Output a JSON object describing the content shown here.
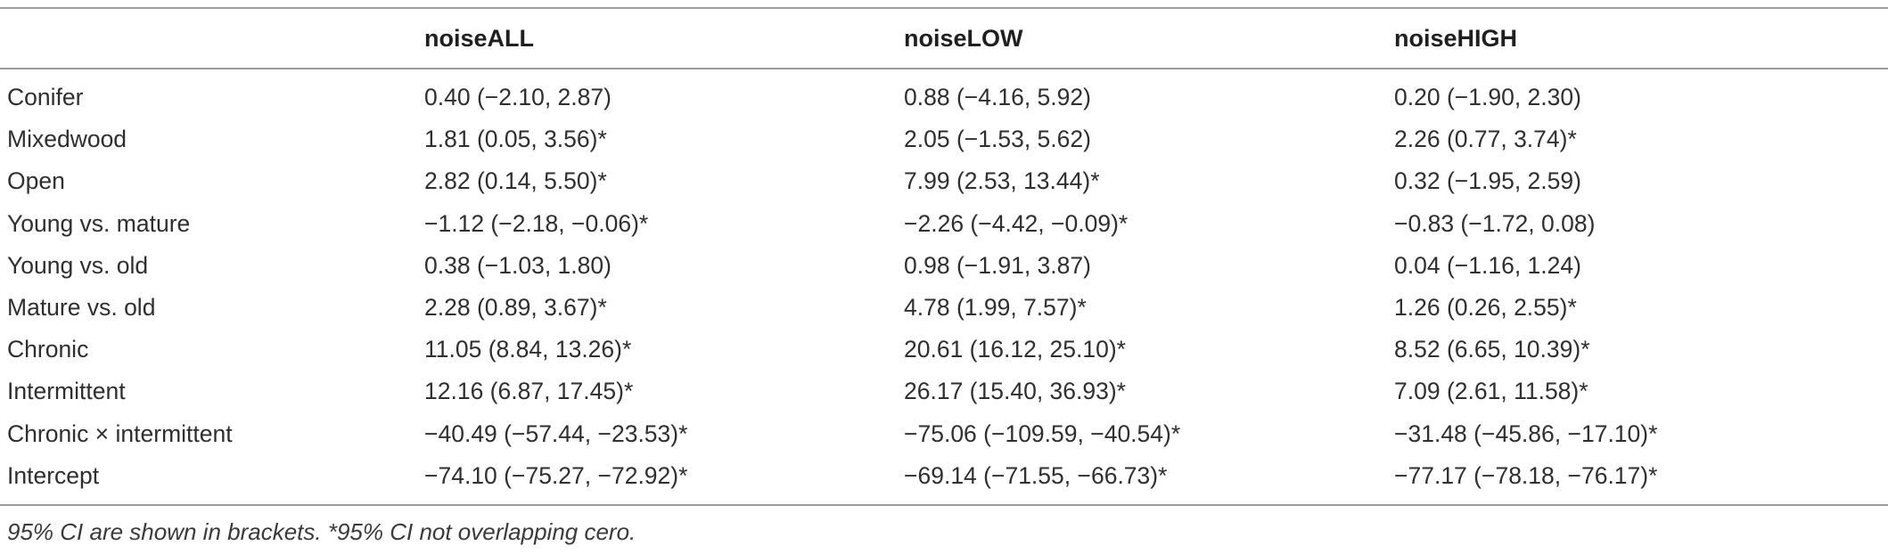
{
  "table": {
    "headers": [
      "",
      "noiseALL",
      "noiseLOW",
      "noiseHIGH"
    ],
    "rows": [
      [
        "Conifer",
        "0.40 (−2.10, 2.87)",
        "0.88 (−4.16, 5.92)",
        "0.20 (−1.90, 2.30)"
      ],
      [
        "Mixedwood",
        "1.81 (0.05, 3.56)*",
        "2.05 (−1.53, 5.62)",
        "2.26 (0.77, 3.74)*"
      ],
      [
        "Open",
        "2.82 (0.14, 5.50)*",
        "7.99 (2.53, 13.44)*",
        "0.32 (−1.95, 2.59)"
      ],
      [
        "Young vs. mature",
        "−1.12 (−2.18, −0.06)*",
        "−2.26 (−4.42, −0.09)*",
        "−0.83 (−1.72, 0.08)"
      ],
      [
        "Young vs. old",
        "0.38 (−1.03, 1.80)",
        "0.98 (−1.91, 3.87)",
        "0.04 (−1.16, 1.24)"
      ],
      [
        "Mature vs. old",
        "2.28 (0.89, 3.67)*",
        "4.78 (1.99, 7.57)*",
        "1.26 (0.26, 2.55)*"
      ],
      [
        "Chronic",
        "11.05 (8.84, 13.26)*",
        "20.61 (16.12, 25.10)*",
        "8.52 (6.65, 10.39)*"
      ],
      [
        "Intermittent",
        "12.16 (6.87, 17.45)*",
        "26.17 (15.40, 36.93)*",
        "7.09 (2.61, 11.58)*"
      ],
      [
        "Chronic × intermittent",
        "−40.49 (−57.44, −23.53)*",
        "−75.06 (−109.59, −40.54)*",
        "−31.48 (−45.86, −17.10)*"
      ],
      [
        "Intercept",
        "−74.10 (−75.27, −72.92)*",
        "−69.14 (−71.55, −66.73)*",
        "−77.17 (−78.18, −76.17)*"
      ]
    ]
  },
  "footnote": "95% CI are shown in brackets. *95% CI not overlapping cero."
}
